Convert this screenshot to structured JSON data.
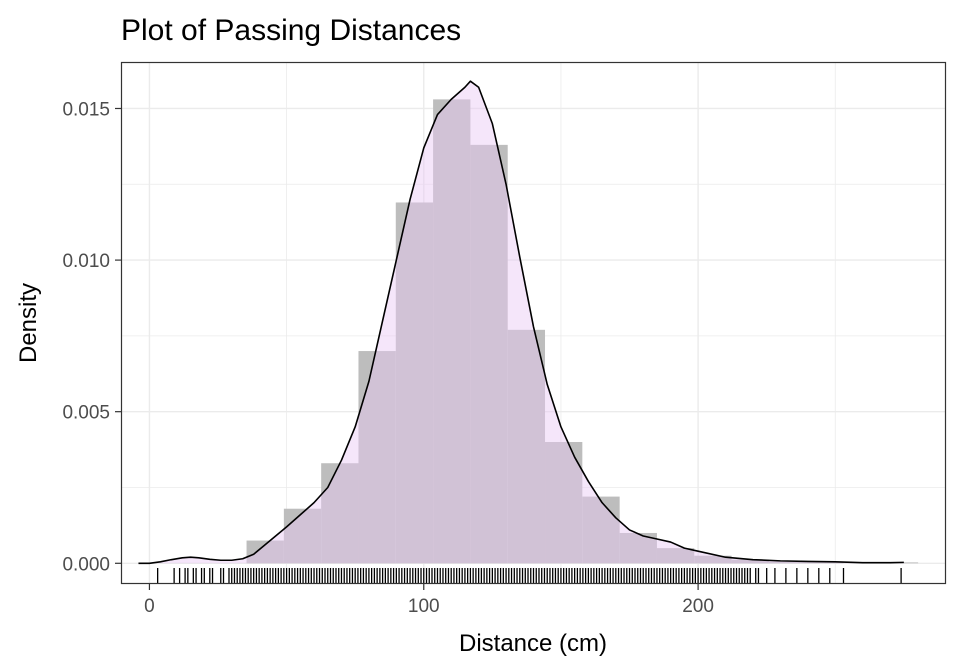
{
  "chart_data": {
    "type": "histogram",
    "title": "Plot of Passing Distances",
    "xlabel": "Distance (cm)",
    "ylabel": "Density",
    "xlim": [
      -10,
      290
    ],
    "ylim": [
      -0.00065,
      0.0165
    ],
    "x_ticks": [
      0,
      100,
      200
    ],
    "y_ticks": [
      0.0,
      0.005,
      0.01,
      0.015
    ],
    "y_tick_labels": [
      "0.000",
      "0.005",
      "0.010",
      "0.015"
    ],
    "x_minor_ticks": [
      50,
      150,
      250
    ],
    "y_minor_ticks": [
      0.0025,
      0.0075,
      0.0125
    ],
    "grid": true,
    "bin_width": 13.6,
    "bins": [
      {
        "x0": -5.4,
        "x1": 8.2,
        "density": 0.0
      },
      {
        "x0": 8.2,
        "x1": 21.8,
        "density": 0.0
      },
      {
        "x0": 21.8,
        "x1": 35.4,
        "density": 0.0
      },
      {
        "x0": 35.4,
        "x1": 49.0,
        "density": 0.00075
      },
      {
        "x0": 49.0,
        "x1": 62.6,
        "density": 0.0018
      },
      {
        "x0": 62.6,
        "x1": 76.2,
        "density": 0.0033
      },
      {
        "x0": 76.2,
        "x1": 89.8,
        "density": 0.007
      },
      {
        "x0": 89.8,
        "x1": 103.4,
        "density": 0.0119
      },
      {
        "x0": 103.4,
        "x1": 117.0,
        "density": 0.0153
      },
      {
        "x0": 117.0,
        "x1": 130.6,
        "density": 0.0138
      },
      {
        "x0": 130.6,
        "x1": 144.2,
        "density": 0.0077
      },
      {
        "x0": 144.2,
        "x1": 157.8,
        "density": 0.004
      },
      {
        "x0": 157.8,
        "x1": 171.4,
        "density": 0.0022
      },
      {
        "x0": 171.4,
        "x1": 185.0,
        "density": 0.001
      },
      {
        "x0": 185.0,
        "x1": 198.6,
        "density": 0.0005
      },
      {
        "x0": 198.6,
        "x1": 212.2,
        "density": 0.00025
      },
      {
        "x0": 212.2,
        "x1": 225.8,
        "density": 0.00012
      },
      {
        "x0": 225.8,
        "x1": 239.4,
        "density": 5e-05
      },
      {
        "x0": 239.4,
        "x1": 253.0,
        "density": 4e-05
      },
      {
        "x0": 253.0,
        "x1": 266.6,
        "density": 0.0
      },
      {
        "x0": 266.6,
        "x1": 280.2,
        "density": 3e-05
      }
    ],
    "density_curve": {
      "x": [
        -4,
        0,
        4,
        8,
        12,
        15,
        18,
        22,
        26,
        30,
        34,
        38,
        42,
        46,
        50,
        55,
        60,
        65,
        70,
        75,
        80,
        85,
        90,
        95,
        100,
        105,
        110,
        115,
        117,
        120,
        125,
        130,
        135,
        140,
        145,
        150,
        155,
        160,
        165,
        170,
        175,
        180,
        185,
        190,
        195,
        200,
        210,
        220,
        230,
        240,
        250,
        260,
        270,
        275
      ],
      "y": [
        0.0,
        0.0,
        5e-05,
        0.00012,
        0.00018,
        0.0002,
        0.00018,
        0.00013,
        0.0001,
        0.0001,
        0.00015,
        0.0003,
        0.0006,
        0.0009,
        0.0012,
        0.0016,
        0.002,
        0.0025,
        0.0034,
        0.0045,
        0.006,
        0.008,
        0.01,
        0.012,
        0.0137,
        0.0148,
        0.0153,
        0.0157,
        0.0159,
        0.0157,
        0.0145,
        0.0125,
        0.0101,
        0.0078,
        0.0059,
        0.0045,
        0.0035,
        0.0027,
        0.002,
        0.0015,
        0.0011,
        0.0009,
        0.0008,
        0.0007,
        0.0005,
        0.0004,
        0.0002,
        0.00012,
        8e-05,
        6e-05,
        5e-05,
        2e-05,
        2e-05,
        3e-05
      ]
    },
    "rug": [
      3,
      9,
      11,
      13,
      14,
      16,
      17,
      19,
      20,
      22,
      23,
      26,
      27,
      29,
      30,
      31,
      32,
      33,
      34,
      35,
      36,
      37,
      38,
      39,
      40,
      41,
      42,
      43,
      44,
      45,
      46,
      47,
      48,
      49,
      50,
      51,
      52,
      53,
      54,
      55,
      56,
      57,
      58,
      59,
      60,
      61,
      62,
      63,
      64,
      65,
      66,
      67,
      68,
      69,
      70,
      71,
      72,
      73,
      74,
      75,
      76,
      77,
      78,
      79,
      80,
      81,
      82,
      83,
      84,
      85,
      86,
      87,
      88,
      89,
      90,
      91,
      92,
      93,
      94,
      95,
      96,
      97,
      98,
      99,
      100,
      101,
      102,
      103,
      104,
      105,
      106,
      107,
      108,
      109,
      110,
      111,
      112,
      113,
      114,
      115,
      116,
      117,
      118,
      119,
      120,
      121,
      122,
      123,
      124,
      125,
      126,
      127,
      128,
      129,
      130,
      131,
      132,
      133,
      134,
      135,
      136,
      137,
      138,
      139,
      140,
      141,
      142,
      143,
      144,
      145,
      146,
      147,
      148,
      149,
      150,
      151,
      152,
      153,
      154,
      155,
      156,
      157,
      158,
      159,
      160,
      161,
      162,
      163,
      164,
      165,
      166,
      167,
      168,
      169,
      170,
      171,
      172,
      173,
      174,
      175,
      176,
      177,
      178,
      179,
      180,
      181,
      182,
      183,
      184,
      185,
      186,
      187,
      188,
      189,
      190,
      191,
      192,
      193,
      194,
      195,
      196,
      197,
      198,
      199,
      200,
      201,
      202,
      203,
      204,
      205,
      206,
      207,
      208,
      209,
      210,
      211,
      212,
      213,
      214,
      215,
      216,
      217,
      218,
      219,
      221,
      222,
      225,
      228,
      232,
      236,
      240,
      244,
      248,
      253,
      274
    ],
    "colors": {
      "histogram_fill": "#bdbdbd",
      "density_fill": "#e8c8f3",
      "density_line": "#000000",
      "panel_border": "#333333",
      "grid": "#ebebeb"
    }
  }
}
